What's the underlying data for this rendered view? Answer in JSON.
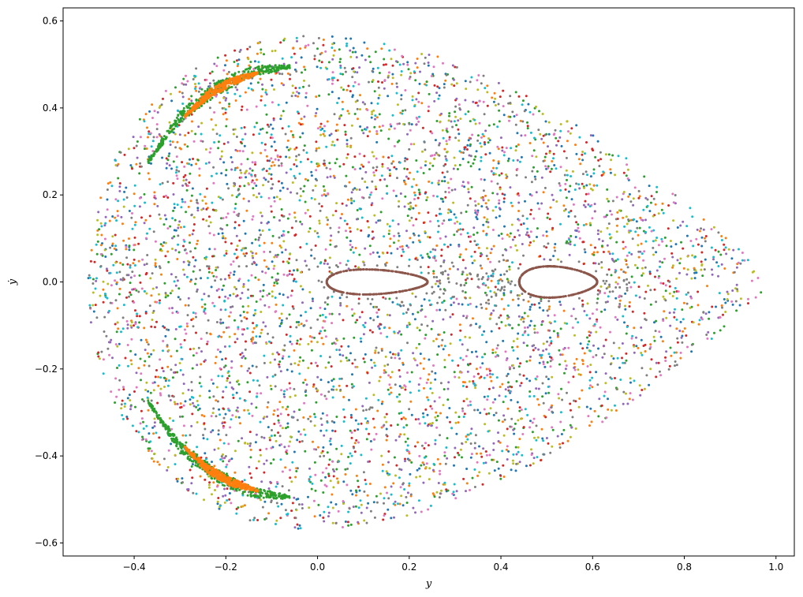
{
  "chart_data": {
    "type": "scatter",
    "title": "",
    "xlabel": "y",
    "ylabel": "ẏ",
    "xlim": [
      -0.555,
      1.04
    ],
    "ylim": [
      -0.63,
      0.63
    ],
    "xticks": [
      -0.4,
      -0.2,
      0.0,
      0.2,
      0.4,
      0.6,
      0.8,
      1.0
    ],
    "xtick_labels": [
      "−0.4",
      "−0.2",
      "0.0",
      "0.2",
      "0.4",
      "0.6",
      "0.8",
      "1.0"
    ],
    "yticks": [
      -0.6,
      -0.4,
      -0.2,
      0.0,
      0.2,
      0.4,
      0.6
    ],
    "ytick_labels": [
      "−0.6",
      "−0.4",
      "−0.2",
      "0.0",
      "0.2",
      "0.4",
      "0.6"
    ],
    "grid": false,
    "legend": "none",
    "palette": [
      "#1f77b4",
      "#ff7f0e",
      "#2ca02c",
      "#d62728",
      "#9467bd",
      "#8c564b",
      "#e377c2",
      "#7f7f7f",
      "#bcbd22",
      "#17becf"
    ],
    "chaotic_sea": {
      "description_boundary_energy": 0.1666667,
      "y_range": [
        -0.5,
        0.97
      ],
      "ydot_range": [
        -0.575,
        0.575
      ],
      "series_colors": [
        "#1f77b4",
        "#ff7f0e",
        "#2ca02c",
        "#d62728",
        "#9467bd",
        "#e377c2",
        "#bcbd22",
        "#17becf",
        "#7f7f7f"
      ],
      "points_per_series": 560
    },
    "islands": [
      {
        "name": "",
        "color": "#2ca02c",
        "y": [
          -0.37,
          -0.3,
          -0.22,
          -0.14,
          -0.06
        ],
        "ydot_upper": [
          0.275,
          0.38,
          0.445,
          0.485,
          0.495
        ],
        "width": 0.012
      },
      {
        "name": "",
        "color": "#ff7f0e",
        "y": [
          -0.29,
          -0.24,
          -0.19,
          -0.13
        ],
        "ydot_upper": [
          0.38,
          0.43,
          0.46,
          0.48
        ],
        "width": 0.008
      },
      {
        "name": "",
        "color": "#2ca02c",
        "y": [
          -0.37,
          -0.3,
          -0.22,
          -0.14,
          -0.06
        ],
        "ydot_upper": [
          -0.275,
          -0.38,
          -0.445,
          -0.485,
          -0.495
        ],
        "width": 0.012
      },
      {
        "name": "",
        "color": "#ff7f0e",
        "y": [
          -0.29,
          -0.24,
          -0.19,
          -0.13
        ],
        "ydot_upper": [
          -0.38,
          -0.43,
          -0.46,
          -0.48
        ],
        "width": 0.008
      }
    ],
    "tori": [
      {
        "color": "#8c564b",
        "y_range": [
          0.02,
          0.24
        ],
        "ydot_amplitude": 0.028
      },
      {
        "color": "#8c564b",
        "y_range": [
          0.44,
          0.61
        ],
        "ydot_amplitude": 0.035
      }
    ],
    "gray_cloud": {
      "color": "#7f7f7f",
      "y_range": [
        0.0,
        0.68
      ],
      "ydot_amplitude": 0.06
    }
  }
}
